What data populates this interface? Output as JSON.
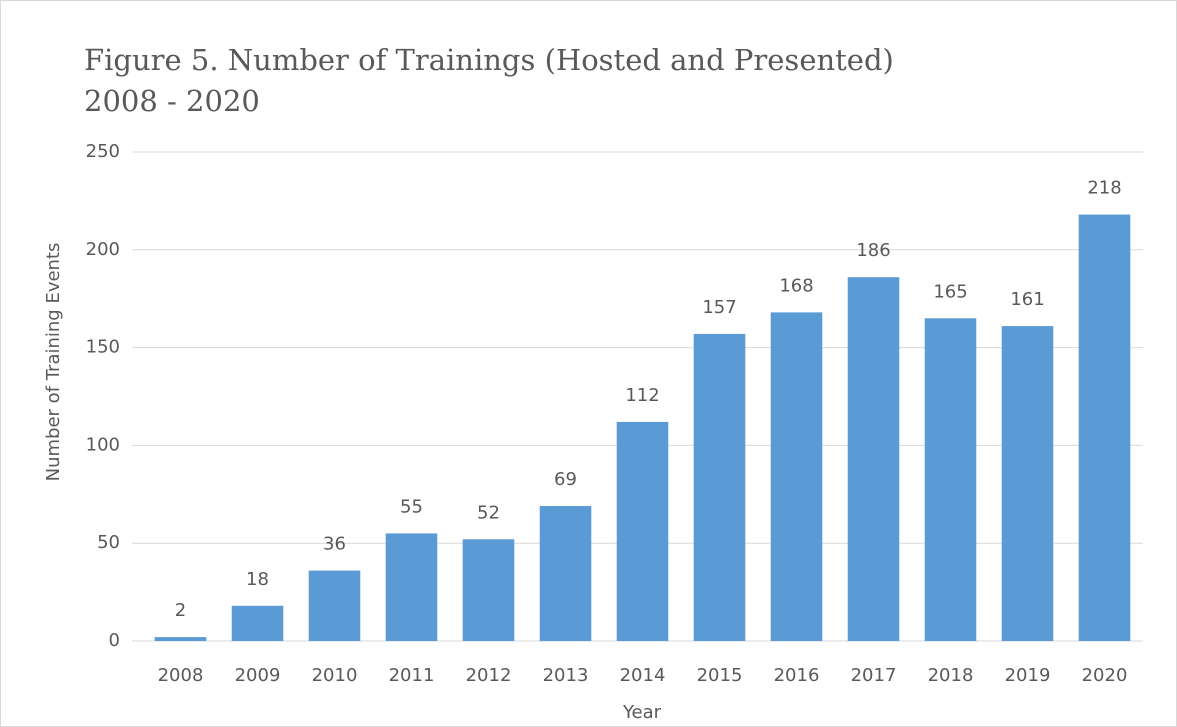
{
  "chart_data": {
    "type": "bar",
    "title": "Figure 5. Number of Trainings (Hosted and Presented)",
    "subtitle": "2008 - 2020",
    "x_label": "Year",
    "y_label": "Number of Training Events",
    "categories": [
      "2008",
      "2009",
      "2010",
      "2011",
      "2012",
      "2013",
      "2014",
      "2015",
      "2016",
      "2017",
      "2018",
      "2019",
      "2020"
    ],
    "values": [
      2,
      18,
      36,
      55,
      52,
      69,
      112,
      157,
      168,
      186,
      165,
      161,
      218
    ],
    "color": "#5b9bd5",
    "ylim": [
      0,
      250
    ],
    "yticks": [
      0,
      50,
      100,
      150,
      200,
      250
    ],
    "grid": true
  }
}
